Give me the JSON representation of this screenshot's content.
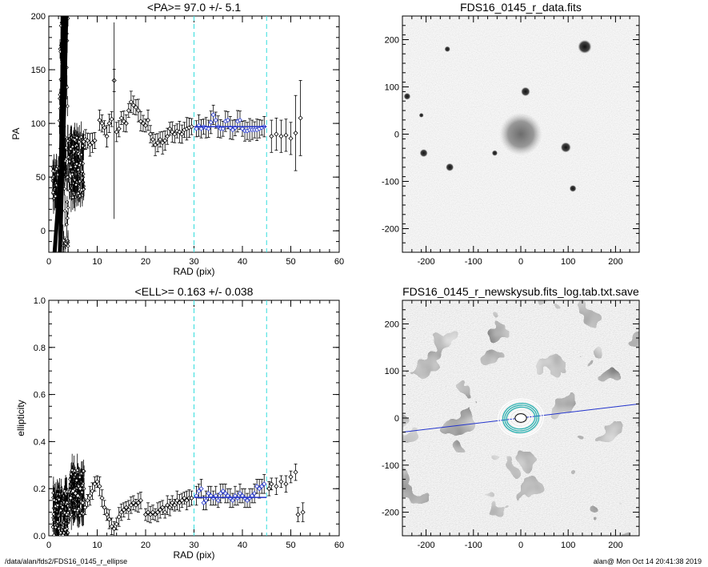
{
  "chart_data": [
    {
      "type": "scatter",
      "title": "<PA>=  97.0 +/-   5.1",
      "xlabel": "RAD (pix)",
      "ylabel": "PA",
      "xlim": [
        0,
        60
      ],
      "ylim": [
        -20,
        200
      ],
      "xticks": [
        "0",
        "10",
        "20",
        "30",
        "40",
        "50",
        "60"
      ],
      "yticks": [
        "0",
        "50",
        "100",
        "150",
        "200"
      ],
      "vlines": [
        30,
        45
      ],
      "mean_line": {
        "x": [
          30,
          45
        ],
        "y": 97.0
      },
      "series_black": [
        [
          7.2,
          83
        ],
        [
          7.6,
          85
        ],
        [
          8.0,
          84
        ],
        [
          8.5,
          80
        ],
        [
          9.0,
          82
        ],
        [
          9.5,
          84
        ],
        [
          10.5,
          103
        ],
        [
          11,
          100
        ],
        [
          11.5,
          96
        ],
        [
          12,
          88
        ],
        [
          12.5,
          100
        ],
        [
          13,
          104
        ],
        [
          13.5,
          140
        ],
        [
          14,
          92
        ],
        [
          14.5,
          95
        ],
        [
          15,
          105
        ],
        [
          15.5,
          102
        ],
        [
          16,
          100
        ],
        [
          16.5,
          112
        ],
        [
          17,
          120
        ],
        [
          17.5,
          117
        ],
        [
          18,
          115
        ],
        [
          18.5,
          112
        ],
        [
          19,
          102
        ],
        [
          19.5,
          100
        ],
        [
          20,
          98
        ],
        [
          20.5,
          103
        ],
        [
          21,
          90
        ],
        [
          21.5,
          85
        ],
        [
          22,
          80
        ],
        [
          22.5,
          82
        ],
        [
          23,
          85
        ],
        [
          23.5,
          82
        ],
        [
          24,
          84
        ],
        [
          24.5,
          88
        ],
        [
          25,
          95
        ],
        [
          25.5,
          92
        ],
        [
          26,
          90
        ],
        [
          26.5,
          93
        ],
        [
          27,
          92
        ],
        [
          27.5,
          90
        ],
        [
          28,
          94
        ],
        [
          28.5,
          95
        ],
        [
          29,
          96
        ],
        [
          29.5,
          97
        ],
        [
          46,
          88
        ],
        [
          47,
          90
        ],
        [
          48,
          88
        ],
        [
          49,
          89
        ],
        [
          50,
          86
        ],
        [
          51,
          91
        ],
        [
          52,
          105
        ]
      ],
      "series_blue": [
        [
          30.5,
          95
        ],
        [
          31,
          98
        ],
        [
          31.5,
          95
        ],
        [
          32,
          97
        ],
        [
          32.5,
          96
        ],
        [
          33,
          95
        ],
        [
          33.5,
          101
        ],
        [
          34,
          108
        ],
        [
          34.5,
          103
        ],
        [
          35,
          97
        ],
        [
          35.5,
          95
        ],
        [
          36,
          95
        ],
        [
          36.5,
          102
        ],
        [
          37,
          103
        ],
        [
          37.5,
          96
        ],
        [
          38,
          94
        ],
        [
          38.5,
          96
        ],
        [
          39,
          102
        ],
        [
          39.5,
          103
        ],
        [
          40,
          95
        ],
        [
          40.5,
          93
        ],
        [
          41,
          93
        ],
        [
          41.5,
          94
        ],
        [
          42,
          94
        ],
        [
          42.5,
          94
        ],
        [
          43,
          94
        ],
        [
          43.5,
          95
        ],
        [
          44,
          96
        ],
        [
          44.5,
          97
        ]
      ]
    },
    {
      "type": "scatter",
      "title": "<ELL>= 0.163 +/-  0.038",
      "xlabel": "RAD (pix)",
      "ylabel": "ellipticity",
      "xlim": [
        0,
        60
      ],
      "ylim": [
        0,
        1
      ],
      "xticks": [
        "0",
        "10",
        "20",
        "30",
        "40",
        "50",
        "60"
      ],
      "yticks": [
        "0.0",
        "0.2",
        "0.4",
        "0.6",
        "0.8",
        "1.0"
      ],
      "vlines": [
        30,
        45
      ],
      "mean_line": {
        "x": [
          30,
          45
        ],
        "y": 0.163
      },
      "series_black": [
        [
          4.5,
          0.16
        ],
        [
          5,
          0.19
        ],
        [
          5.5,
          0.18
        ],
        [
          6,
          0.17
        ],
        [
          6.5,
          0.2
        ],
        [
          7,
          0.14
        ],
        [
          7.5,
          0.12
        ],
        [
          8,
          0.15
        ],
        [
          8.5,
          0.17
        ],
        [
          9,
          0.19
        ],
        [
          9.5,
          0.22
        ],
        [
          10,
          0.23
        ],
        [
          10.5,
          0.21
        ],
        [
          11,
          0.16
        ],
        [
          11.5,
          0.12
        ],
        [
          12,
          0.09
        ],
        [
          12.5,
          0.07
        ],
        [
          13,
          0.04
        ],
        [
          13.5,
          0.03
        ],
        [
          14,
          0.05
        ],
        [
          14.5,
          0.08
        ],
        [
          15,
          0.1
        ],
        [
          15.5,
          0.11
        ],
        [
          16,
          0.12
        ],
        [
          16.5,
          0.11
        ],
        [
          17,
          0.13
        ],
        [
          17.5,
          0.14
        ],
        [
          18,
          0.13
        ],
        [
          18.5,
          0.14
        ],
        [
          19,
          0.15
        ],
        [
          20,
          0.09
        ],
        [
          20.5,
          0.1
        ],
        [
          21,
          0.09
        ],
        [
          21.5,
          0.1
        ],
        [
          22,
          0.09
        ],
        [
          22.5,
          0.1
        ],
        [
          23,
          0.11
        ],
        [
          23.5,
          0.12
        ],
        [
          24,
          0.1
        ],
        [
          24.5,
          0.13
        ],
        [
          25,
          0.12
        ],
        [
          25.5,
          0.14
        ],
        [
          26,
          0.13
        ],
        [
          26.5,
          0.15
        ],
        [
          27,
          0.14
        ],
        [
          27.5,
          0.15
        ],
        [
          28,
          0.16
        ],
        [
          28.5,
          0.15
        ],
        [
          29,
          0.16
        ],
        [
          29.5,
          0.16
        ],
        [
          45.5,
          0.2
        ],
        [
          46,
          0.22
        ],
        [
          47,
          0.21
        ],
        [
          48,
          0.23
        ],
        [
          49,
          0.22
        ],
        [
          50,
          0.25
        ],
        [
          51,
          0.27
        ],
        [
          51.5,
          0.09
        ],
        [
          52.5,
          0.1
        ]
      ],
      "series_blue": [
        [
          30.5,
          0.17
        ],
        [
          31,
          0.19
        ],
        [
          31.5,
          0.2
        ],
        [
          32,
          0.14
        ],
        [
          32.5,
          0.15
        ],
        [
          33,
          0.18
        ],
        [
          33.5,
          0.17
        ],
        [
          34,
          0.16
        ],
        [
          34.5,
          0.17
        ],
        [
          35,
          0.15
        ],
        [
          35.5,
          0.18
        ],
        [
          36,
          0.19
        ],
        [
          36.5,
          0.18
        ],
        [
          37,
          0.17
        ],
        [
          37.5,
          0.16
        ],
        [
          38,
          0.15
        ],
        [
          38.5,
          0.17
        ],
        [
          39,
          0.16
        ],
        [
          39.5,
          0.18
        ],
        [
          40,
          0.17
        ],
        [
          40.5,
          0.16
        ],
        [
          41,
          0.15
        ],
        [
          41.5,
          0.16
        ],
        [
          42,
          0.17
        ],
        [
          42.5,
          0.18
        ],
        [
          43,
          0.21
        ],
        [
          43.5,
          0.2
        ],
        [
          44,
          0.21
        ],
        [
          44.5,
          0.22
        ]
      ]
    },
    {
      "type": "heatmap",
      "title": "FDS16_0145_r_data.fits",
      "xlim": [
        -250,
        250
      ],
      "ylim": [
        -250,
        250
      ],
      "xticks": [
        "-200",
        "-100",
        "0",
        "100",
        "200"
      ],
      "yticks": [
        "-200",
        "-100",
        "0",
        "100",
        "200"
      ],
      "colormap": "inverted grayscale",
      "sources": [
        {
          "x": 135,
          "y": 185,
          "r": 12
        },
        {
          "x": 10,
          "y": 90,
          "r": 8
        },
        {
          "x": 95,
          "y": -28,
          "r": 9
        },
        {
          "x": -205,
          "y": -40,
          "r": 7
        },
        {
          "x": -150,
          "y": -70,
          "r": 7
        },
        {
          "x": -155,
          "y": 180,
          "r": 5
        },
        {
          "x": 110,
          "y": -115,
          "r": 6
        },
        {
          "x": -55,
          "y": -40,
          "r": 5
        },
        {
          "x": -240,
          "y": 80,
          "r": 6
        },
        {
          "x": -210,
          "y": 40,
          "r": 4
        }
      ],
      "galaxy": {
        "x": 0,
        "y": 0,
        "r": 45
      }
    },
    {
      "type": "heatmap",
      "title": "FDS16_0145_r_newskysub.fits_log.tab.txt.save",
      "xlim": [
        -250,
        250
      ],
      "ylim": [
        -250,
        250
      ],
      "xticks": [
        "-200",
        "-100",
        "0",
        "100",
        "200"
      ],
      "yticks": [
        "-200",
        "-100",
        "0",
        "100",
        "200"
      ],
      "colormap": "grayscale with masked regions",
      "pa_line": {
        "x1": -250,
        "y1": -30,
        "x2": 250,
        "y2": 30
      },
      "ellipses": [
        {
          "a": 18,
          "b": 14,
          "color": "white"
        },
        {
          "a": 24,
          "b": 19,
          "color": "white"
        },
        {
          "a": 30,
          "b": 23,
          "color": "#20b0b0"
        },
        {
          "a": 34,
          "b": 27,
          "color": "#20b0b0"
        },
        {
          "a": 38,
          "b": 31,
          "color": "#20b0b0"
        },
        {
          "a": 43,
          "b": 36,
          "color": "white"
        },
        {
          "a": 48,
          "b": 40,
          "color": "white"
        }
      ]
    }
  ],
  "footer": {
    "left": "/data/alan/fds2/FDS16_0145_r_ellipse",
    "right": "alan@  Mon Oct 14 20:41:38 2019"
  }
}
